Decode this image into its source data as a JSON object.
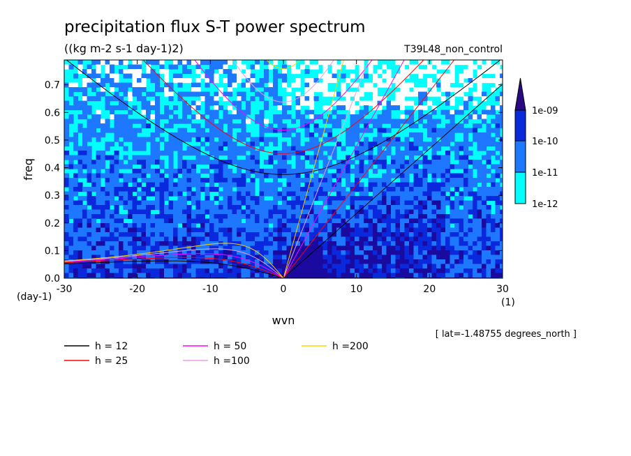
{
  "chart_data": {
    "type": "heatmap",
    "title": "precipitation flux S-T power spectrum",
    "subtitle": "((kg m-2 s-1 day-1)2)",
    "run_label": "T39L48_non_control",
    "xlabel": "wvn",
    "ylabel": "freq",
    "x_unit": "(1)",
    "y_unit": "(day-1)",
    "xlim": [
      -30,
      30
    ],
    "ylim": [
      0,
      0.79
    ],
    "x_ticks": [
      -30,
      -20,
      -10,
      0,
      10,
      20,
      30
    ],
    "x_tick_labels": [
      "-30",
      "-20",
      "-10",
      "0",
      "10",
      "20",
      "30"
    ],
    "y_ticks": [
      0.0,
      0.1,
      0.2,
      0.3,
      0.4,
      0.5,
      0.6,
      0.7
    ],
    "y_tick_labels": [
      "0.0",
      "0.1",
      "0.2",
      "0.3",
      "0.4",
      "0.5",
      "0.6",
      "0.7"
    ],
    "location_note": "[ lat=-1.48755 degrees_north ]",
    "colorbar": {
      "levels": [
        "1e-12",
        "1e-11",
        "1e-10",
        "1e-09"
      ],
      "colors": [
        "#ffffff",
        "#00ffff",
        "#1e78ff",
        "#0a28dc",
        "#1a0aa0",
        "#2a0a80"
      ]
    },
    "series": [
      {
        "name": "h = 12",
        "h": 12,
        "color": "#000000"
      },
      {
        "name": "h = 25",
        "h": 25,
        "color": "#ff0000"
      },
      {
        "name": "h = 50",
        "h": 50,
        "color": "#ff00ff"
      },
      {
        "name": "h =100",
        "h": 100,
        "color": "#e8a0e8"
      },
      {
        "name": "h =200",
        "h": 200,
        "color": "#ffd000"
      }
    ]
  }
}
